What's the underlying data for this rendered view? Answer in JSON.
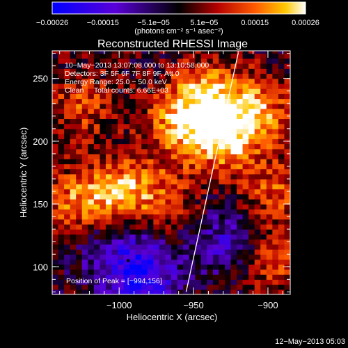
{
  "chart_data": {
    "type": "heatmap",
    "title": "Reconstructed RHESSI Image",
    "xlabel": "Heliocentric X (arcsec)",
    "ylabel": "Heliocentric Y (arcsec)",
    "xlim": [
      -1045,
      -885
    ],
    "ylim": [
      78,
      272
    ],
    "x_ticks": [
      {
        "value": -1000,
        "label": "−1000"
      },
      {
        "value": -950,
        "label": "−950"
      },
      {
        "value": -900,
        "label": "−900"
      }
    ],
    "y_ticks": [
      {
        "value": 100,
        "label": "100"
      },
      {
        "value": 150,
        "label": "150"
      },
      {
        "value": 200,
        "label": "200"
      },
      {
        "value": 250,
        "label": "250"
      }
    ],
    "colorbar": {
      "range": [
        -0.00026,
        0.00026
      ],
      "tick_labels": [
        "−0.00026",
        "−0.00015",
        "−5.1e−05",
        "5.1e−05",
        "0.00015",
        "0.00026"
      ],
      "units": "(photons cm⁻² s⁻¹ asec⁻²)",
      "colormap": [
        "#0000ff",
        "#5a00d8",
        "#000000",
        "#b40000",
        "#ff5a00",
        "#ffc800",
        "#ffffff"
      ]
    },
    "annotations": {
      "time_range": "10−May−2013 13:07:08.000 to 13:10:58.000",
      "detectors": "Detectors: 3F 5F 6F 7F 8F 9F, Att 0",
      "energy": "Energy Range: 25.0 − 50.0 keV",
      "clean": "Clean     Total counts: 6.66E+03",
      "peak": "Position of Peak = [−994,156]"
    },
    "limb_line": {
      "x": [
        -955,
        -920
      ],
      "y": [
        80,
        270
      ]
    },
    "peak_position": {
      "x": -994,
      "y": 156
    },
    "intensity_regions": [
      {
        "x": -1030,
        "y": 150,
        "level": 0.7
      },
      {
        "x": -1000,
        "y": 160,
        "level": 0.8
      },
      {
        "x": -1025,
        "y": 230,
        "level": 0.55
      },
      {
        "x": -960,
        "y": 215,
        "level": 0.8
      },
      {
        "x": -930,
        "y": 205,
        "level": 1.0
      },
      {
        "x": -940,
        "y": 240,
        "level": 0.75
      },
      {
        "x": -905,
        "y": 225,
        "level": 0.7
      },
      {
        "x": -895,
        "y": 160,
        "level": 0.6
      },
      {
        "x": -900,
        "y": 105,
        "level": 0.6
      },
      {
        "x": -970,
        "y": 155,
        "level": 0.5
      },
      {
        "x": -985,
        "y": 95,
        "level": -1.0
      },
      {
        "x": -925,
        "y": 120,
        "level": -0.65
      },
      {
        "x": -1010,
        "y": 120,
        "level": -0.4
      }
    ],
    "footer": "12−May−2013 05:03"
  }
}
